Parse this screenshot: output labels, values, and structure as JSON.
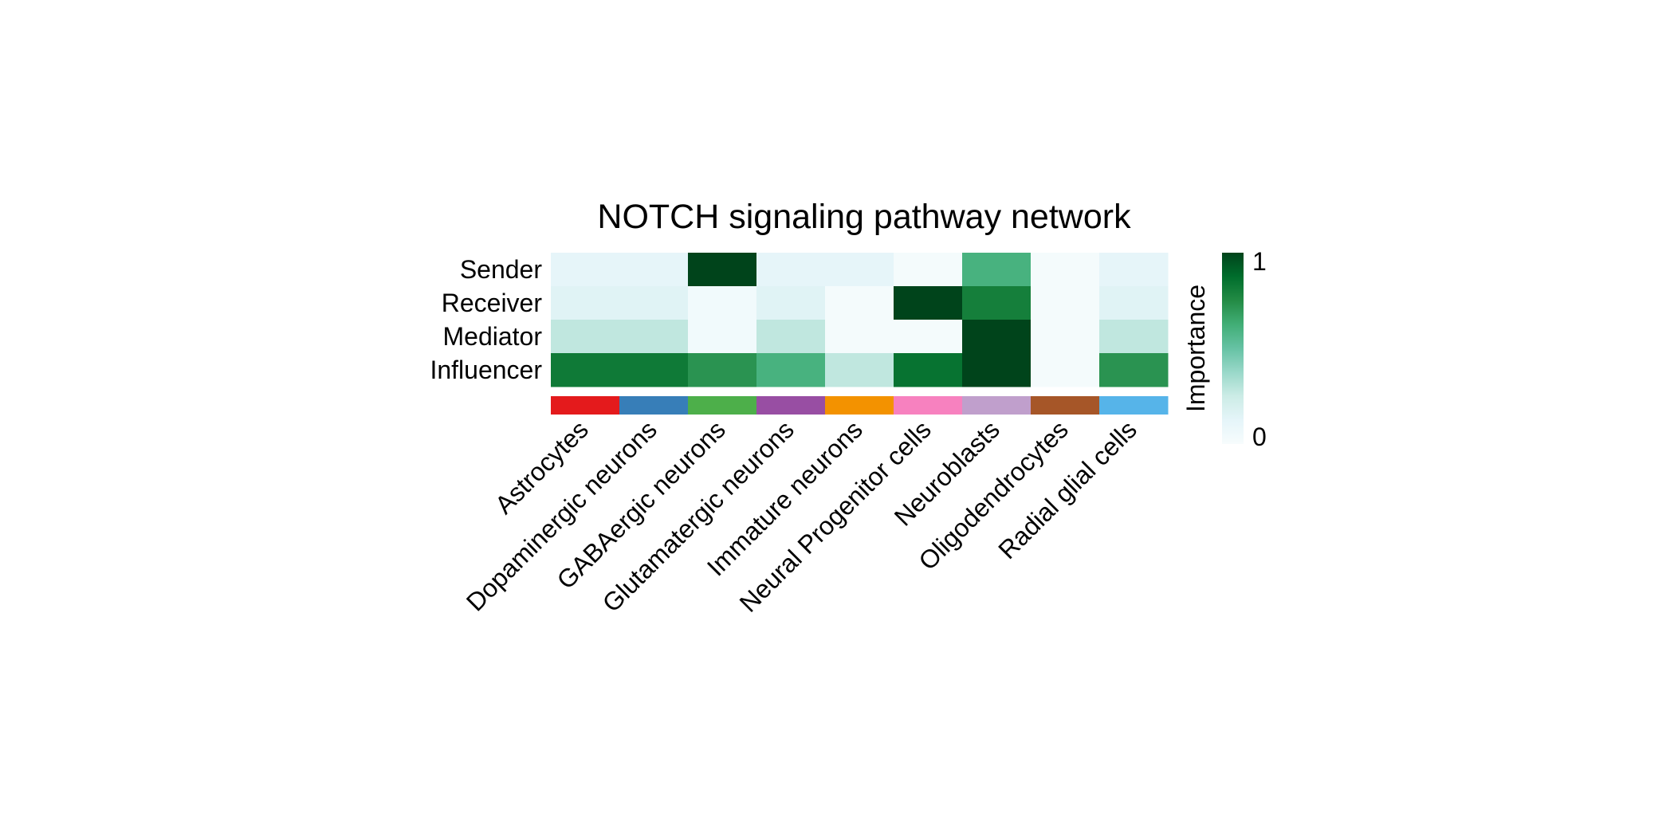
{
  "chart_data": {
    "type": "heatmap",
    "title": "NOTCH signaling pathway network",
    "rows": [
      "Sender",
      "Receiver",
      "Mediator",
      "Influencer"
    ],
    "columns": [
      "Astrocytes",
      "Dopaminergic neurons",
      "GABAergic neurons",
      "Glutamatergic neurons",
      "Immature neurons",
      "Neural Progenitor cells",
      "Neuroblasts",
      "Oligodendrocytes",
      "Radial glial cells"
    ],
    "values": [
      [
        0.12,
        0.12,
        1.0,
        0.12,
        0.12,
        0.02,
        0.6,
        0.02,
        0.12
      ],
      [
        0.15,
        0.15,
        0.04,
        0.15,
        0.02,
        1.0,
        0.8,
        0.02,
        0.15
      ],
      [
        0.28,
        0.28,
        0.04,
        0.28,
        0.02,
        0.02,
        1.0,
        0.02,
        0.28
      ],
      [
        0.82,
        0.82,
        0.72,
        0.6,
        0.28,
        0.85,
        1.0,
        0.02,
        0.72
      ]
    ],
    "annotation_colors": [
      "#E41A1C",
      "#377EB8",
      "#4DAF4A",
      "#984EA3",
      "#F39200",
      "#F781BF",
      "#C09FCC",
      "#A65628",
      "#56B4E9"
    ],
    "color_scale": {
      "stops": [
        "#F7FCFD",
        "#E5F5F9",
        "#CCECE6",
        "#99D8C9",
        "#66C2A4",
        "#41AE76",
        "#238B45",
        "#006D2C",
        "#00441B"
      ],
      "min": 0,
      "max": 1
    },
    "legend": {
      "title": "Importance",
      "ticks": [
        "0",
        "1"
      ],
      "position": "right"
    }
  }
}
